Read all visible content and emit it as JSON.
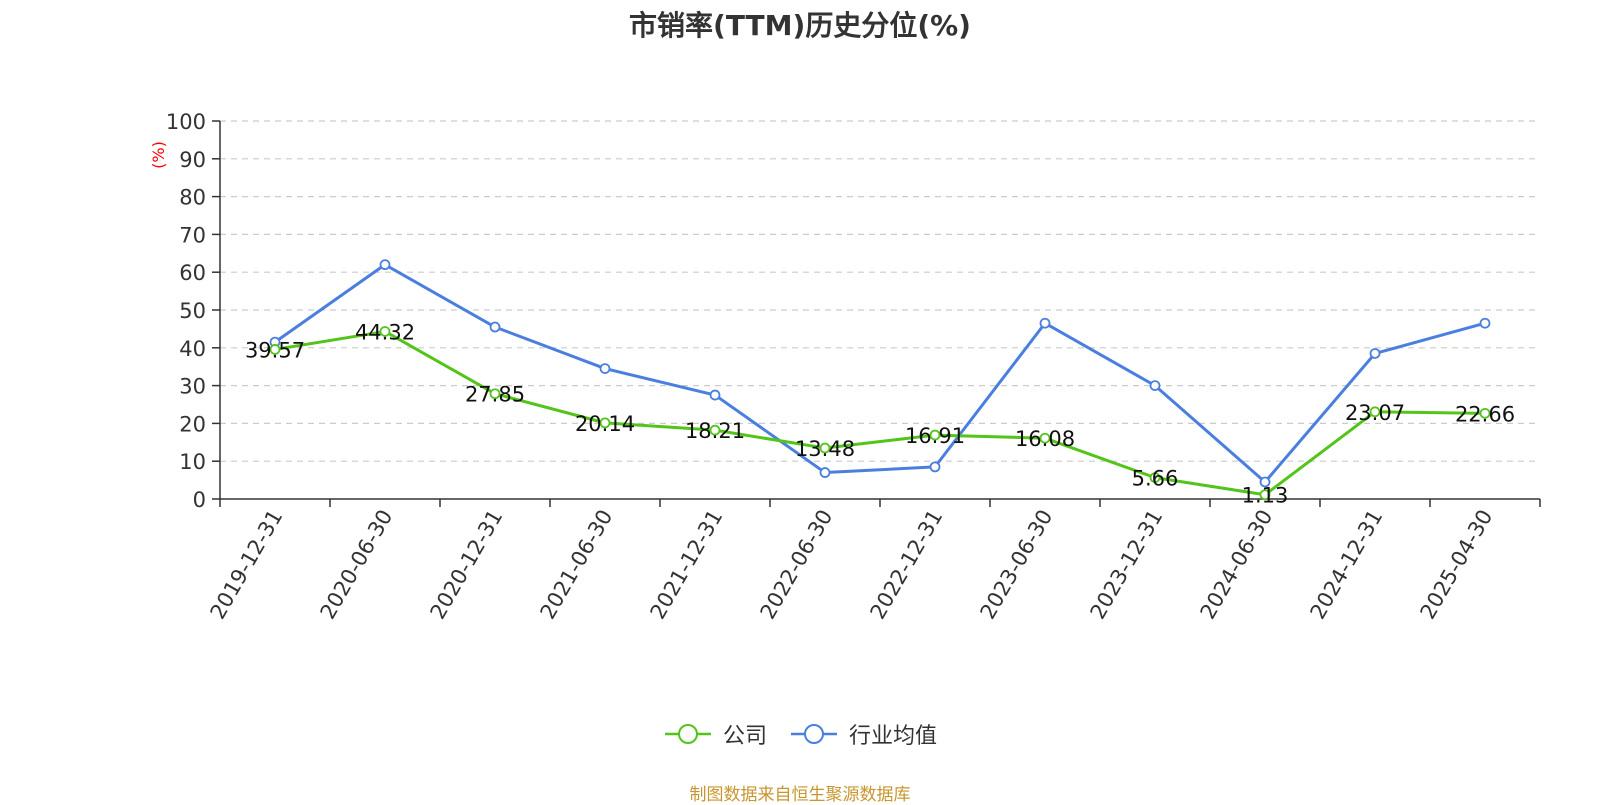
{
  "title": "市销率(TTM)历史分位(%)",
  "source": "制图数据来自恒生聚源数据库",
  "colors": {
    "company": "#52c41a",
    "industry": "#4a7fe0",
    "ylabel": "#ff0000",
    "source": "#c8962e"
  },
  "chart_data": {
    "type": "line",
    "title": "市销率(TTM)历史分位(%)",
    "xlabel": "",
    "ylabel": "(%)",
    "ylim": [
      0,
      100
    ],
    "yticks": [
      0,
      10,
      20,
      30,
      40,
      50,
      60,
      70,
      80,
      90,
      100
    ],
    "grid": true,
    "legend_position": "bottom",
    "categories": [
      "2019-12-31",
      "2020-06-30",
      "2020-12-31",
      "2021-06-30",
      "2021-12-31",
      "2022-06-30",
      "2022-12-31",
      "2023-06-30",
      "2023-12-31",
      "2024-06-30",
      "2024-12-31",
      "2025-04-30"
    ],
    "series": [
      {
        "name": "公司",
        "values": [
          39.57,
          44.32,
          27.85,
          20.14,
          18.21,
          13.48,
          16.91,
          16.08,
          5.66,
          1.13,
          23.07,
          22.66
        ],
        "labels": [
          "39.57",
          "44.32",
          "27.85",
          "20.14",
          "18.21",
          "13.48",
          "16.91",
          "16.08",
          "5.66",
          "1.13",
          "23.07",
          "22.66"
        ]
      },
      {
        "name": "行业均值",
        "values": [
          41.5,
          62,
          45.5,
          34.5,
          27.5,
          7,
          8.5,
          46.5,
          30,
          4.5,
          38.5,
          46.5
        ]
      }
    ]
  }
}
